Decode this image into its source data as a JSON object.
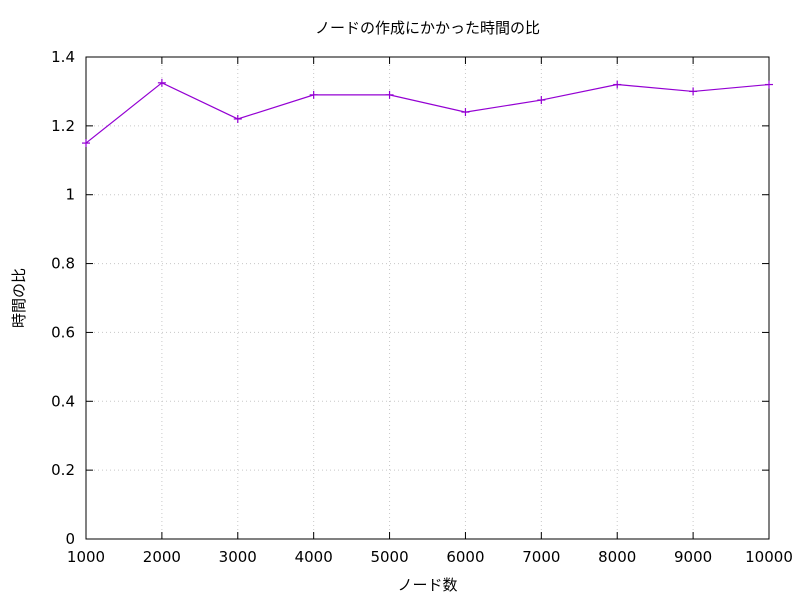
{
  "chart_data": {
    "type": "line",
    "title": "ノードの作成にかかった時間の比",
    "xlabel": "ノード数",
    "ylabel": "時間の比",
    "xlim": [
      1000,
      10000
    ],
    "ylim": [
      0,
      1.4
    ],
    "xticks": [
      1000,
      2000,
      3000,
      4000,
      5000,
      6000,
      7000,
      8000,
      9000,
      10000
    ],
    "yticks": [
      0,
      0.2,
      0.4,
      0.6,
      0.8,
      1,
      1.2,
      1.4
    ],
    "ytick_labels": [
      "0",
      "0.2",
      "0.4",
      "0.6",
      "0.8",
      "1",
      "1.2",
      "1.4"
    ],
    "grid": true,
    "series": [
      {
        "color": "#9400d3",
        "marker": "plus",
        "x": [
          1000,
          2000,
          3000,
          4000,
          5000,
          6000,
          7000,
          8000,
          9000,
          10000
        ],
        "y": [
          1.15,
          1.325,
          1.22,
          1.29,
          1.29,
          1.24,
          1.275,
          1.32,
          1.3,
          1.32
        ]
      }
    ]
  }
}
